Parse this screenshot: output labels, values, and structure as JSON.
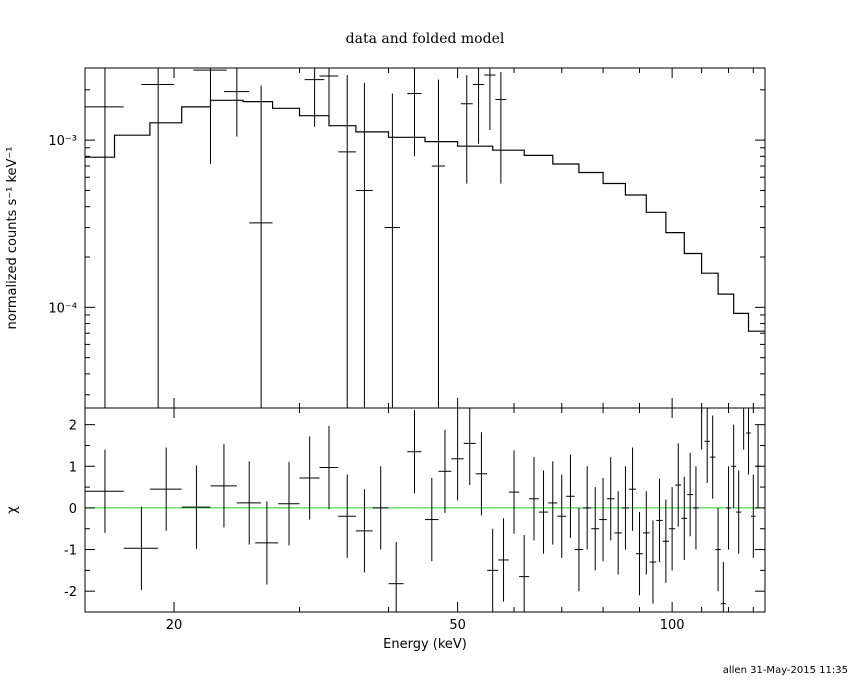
{
  "chart_data": {
    "type": "line",
    "title": "data and folded model",
    "xlabel": "Energy (keV)",
    "footer": "allen 31-May-2015 11:35",
    "x_scale": "log",
    "xlim": [
      15,
      135
    ],
    "x_ticks": [
      {
        "value": 20,
        "label": "20"
      },
      {
        "value": 50,
        "label": "50"
      },
      {
        "value": 100,
        "label": "100"
      }
    ],
    "top_panel": {
      "ylabel": "normalized counts s⁻¹ keV⁻¹",
      "y_scale": "log",
      "ylim": [
        2.5e-05,
        0.0027
      ],
      "y_ticks": [
        {
          "value": 0.001,
          "label": "10⁻³"
        },
        {
          "value": 0.0001,
          "label": "10⁻⁴"
        }
      ],
      "data_points": [
        {
          "x": 16.0,
          "xerr": 1.0,
          "y": 0.00158,
          "yerr_lo": 0.00157,
          "yerr_hi": 0.0015
        },
        {
          "x": 19.0,
          "xerr": 1.0,
          "y": 0.00215,
          "yerr_lo": 0.00214,
          "yerr_hi": 0.0011
        },
        {
          "x": 22.5,
          "xerr": 1.2,
          "y": 0.00262,
          "yerr_lo": 0.0019,
          "yerr_hi": 0.0008
        },
        {
          "x": 24.5,
          "xerr": 1.0,
          "y": 0.00195,
          "yerr_lo": 0.0009,
          "yerr_hi": 0.0008
        },
        {
          "x": 26.5,
          "xerr": 1.0,
          "y": 0.00032,
          "yerr_lo": 0.000295,
          "yerr_hi": 0.0018
        },
        {
          "x": 31.5,
          "xerr": 1.0,
          "y": 0.0023,
          "yerr_lo": 0.0011,
          "yerr_hi": 0.0008
        },
        {
          "x": 33.0,
          "xerr": 1.0,
          "y": 0.00242,
          "yerr_lo": 0.0011,
          "yerr_hi": 0.0009
        },
        {
          "x": 35.0,
          "xerr": 1.0,
          "y": 0.00085,
          "yerr_lo": 0.00083,
          "yerr_hi": 0.0016
        },
        {
          "x": 37.0,
          "xerr": 1.0,
          "y": 0.0005,
          "yerr_lo": 0.00048,
          "yerr_hi": 0.0017
        },
        {
          "x": 40.5,
          "xerr": 1.0,
          "y": 0.0003,
          "yerr_lo": 0.00028,
          "yerr_hi": 0.0016
        },
        {
          "x": 43.5,
          "xerr": 1.0,
          "y": 0.0019,
          "yerr_lo": 0.0011,
          "yerr_hi": 0.0008
        },
        {
          "x": 47.0,
          "xerr": 1.0,
          "y": 0.0007,
          "yerr_lo": 0.00068,
          "yerr_hi": 0.0016
        },
        {
          "x": 51.5,
          "xerr": 1.0,
          "y": 0.00165,
          "yerr_lo": 0.0011,
          "yerr_hi": 0.0008
        },
        {
          "x": 53.5,
          "xerr": 1.0,
          "y": 0.00215,
          "yerr_lo": 0.0012,
          "yerr_hi": 0.0009
        },
        {
          "x": 55.5,
          "xerr": 1.0,
          "y": 0.00245,
          "yerr_lo": 0.0013,
          "yerr_hi": 0.0009
        },
        {
          "x": 57.5,
          "xerr": 1.0,
          "y": 0.00175,
          "yerr_lo": 0.0012,
          "yerr_hi": 0.0008
        }
      ],
      "model_step": [
        [
          15,
          0.00079
        ],
        [
          16.5,
          0.00107
        ],
        [
          18.5,
          0.00127
        ],
        [
          20.5,
          0.00158
        ],
        [
          22.5,
          0.00173
        ],
        [
          25.0,
          0.0017
        ],
        [
          27.5,
          0.00155
        ],
        [
          30.0,
          0.0014
        ],
        [
          33.0,
          0.00122
        ],
        [
          36.0,
          0.00112
        ],
        [
          40.0,
          0.00104
        ],
        [
          45.0,
          0.00098
        ],
        [
          50.0,
          0.00092
        ],
        [
          56.0,
          0.00087
        ],
        [
          62.0,
          0.00081
        ],
        [
          68.0,
          0.00072
        ],
        [
          74.0,
          0.00064
        ],
        [
          80.0,
          0.00055
        ],
        [
          86.0,
          0.00047
        ],
        [
          92.0,
          0.00037
        ],
        [
          98.0,
          0.00028
        ],
        [
          104.0,
          0.00021
        ],
        [
          110.0,
          0.00016
        ],
        [
          116.0,
          0.00012
        ],
        [
          122.0,
          9.2e-05
        ],
        [
          128.0,
          7.2e-05
        ],
        [
          135,
          7.2e-05
        ]
      ]
    },
    "bottom_panel": {
      "ylabel": "χ",
      "ylim": [
        -2.5,
        2.4
      ],
      "y_ticks": [
        {
          "value": 2,
          "label": "2"
        },
        {
          "value": 1,
          "label": "1"
        },
        {
          "value": 0,
          "label": "0"
        },
        {
          "value": -1,
          "label": "-1"
        },
        {
          "value": -2,
          "label": "-2"
        }
      ],
      "zero_line_color": "#22cc22",
      "residuals": [
        {
          "x": 16.0,
          "xerr": 1.0,
          "y": 0.4
        },
        {
          "x": 18.0,
          "xerr": 1.0,
          "y": -0.97
        },
        {
          "x": 19.5,
          "xerr": 1.0,
          "y": 0.45
        },
        {
          "x": 21.5,
          "xerr": 1.0,
          "y": 0.02
        },
        {
          "x": 23.5,
          "xerr": 1.0,
          "y": 0.53
        },
        {
          "x": 25.5,
          "xerr": 1.0,
          "y": 0.12
        },
        {
          "x": 27.0,
          "xerr": 1.0,
          "y": -0.84
        },
        {
          "x": 29.0,
          "xerr": 1.0,
          "y": 0.1
        },
        {
          "x": 31.0,
          "xerr": 1.0,
          "y": 0.72
        },
        {
          "x": 33.0,
          "xerr": 1.0,
          "y": 0.97
        },
        {
          "x": 35.0,
          "xerr": 1.0,
          "y": -0.2
        },
        {
          "x": 37.0,
          "xerr": 1.0,
          "y": -0.55
        },
        {
          "x": 39.0,
          "xerr": 1.0,
          "y": 0.0
        },
        {
          "x": 41.0,
          "xerr": 1.0,
          "y": -1.82
        },
        {
          "x": 43.5,
          "xerr": 1.0,
          "y": 1.35
        },
        {
          "x": 46.0,
          "xerr": 1.0,
          "y": -0.28
        },
        {
          "x": 48.0,
          "xerr": 1.0,
          "y": 0.88
        },
        {
          "x": 50.0,
          "xerr": 1.0,
          "y": 1.18
        },
        {
          "x": 52.0,
          "xerr": 1.0,
          "y": 1.55
        },
        {
          "x": 54.0,
          "xerr": 1.0,
          "y": 0.82
        },
        {
          "x": 56.0,
          "xerr": 1.0,
          "y": -1.5
        },
        {
          "x": 58.0,
          "xerr": 1.0,
          "y": -1.25
        },
        {
          "x": 60.0,
          "xerr": 1.0,
          "y": 0.38
        },
        {
          "x": 62.0,
          "xerr": 1.0,
          "y": -1.65
        },
        {
          "x": 64.0,
          "xerr": 1.0,
          "y": 0.22
        },
        {
          "x": 66.0,
          "xerr": 1.0,
          "y": -0.1
        },
        {
          "x": 68.0,
          "xerr": 1.0,
          "y": 0.12
        },
        {
          "x": 70.0,
          "xerr": 1.0,
          "y": -0.2
        },
        {
          "x": 72.0,
          "xerr": 1.0,
          "y": 0.28
        },
        {
          "x": 74.0,
          "xerr": 1.0,
          "y": -1.0
        },
        {
          "x": 76.0,
          "xerr": 1.0,
          "y": 0.0
        },
        {
          "x": 78.0,
          "xerr": 1.0,
          "y": -0.5
        },
        {
          "x": 80.0,
          "xerr": 1.0,
          "y": -0.28
        },
        {
          "x": 82.0,
          "xerr": 1.0,
          "y": 0.22
        },
        {
          "x": 84.0,
          "xerr": 1.0,
          "y": -0.6
        },
        {
          "x": 86.0,
          "xerr": 1.0,
          "y": 0.0
        },
        {
          "x": 88.0,
          "xerr": 1.0,
          "y": 0.45
        },
        {
          "x": 90.0,
          "xerr": 1.0,
          "y": -1.1
        },
        {
          "x": 92.0,
          "xerr": 1.0,
          "y": -0.6
        },
        {
          "x": 94.0,
          "xerr": 1.0,
          "y": -1.3
        },
        {
          "x": 96.0,
          "xerr": 1.0,
          "y": -0.3
        },
        {
          "x": 98.0,
          "xerr": 1.0,
          "y": -0.8
        },
        {
          "x": 100.0,
          "xerr": 1.0,
          "y": -0.5
        },
        {
          "x": 102.0,
          "xerr": 1.0,
          "y": 0.55
        },
        {
          "x": 104.0,
          "xerr": 1.0,
          "y": -0.25
        },
        {
          "x": 106.0,
          "xerr": 1.0,
          "y": 0.32
        },
        {
          "x": 108.0,
          "xerr": 1.0,
          "y": 0.0
        },
        {
          "x": 110.0,
          "xerr": 1.0,
          "y": 2.4
        },
        {
          "x": 112.0,
          "xerr": 1.0,
          "y": 1.6
        },
        {
          "x": 114.0,
          "xerr": 1.0,
          "y": 1.22
        },
        {
          "x": 116.0,
          "xerr": 1.0,
          "y": -1.0
        },
        {
          "x": 118.0,
          "xerr": 1.0,
          "y": -2.3
        },
        {
          "x": 120.0,
          "xerr": 1.0,
          "y": 0.0
        },
        {
          "x": 122.0,
          "xerr": 1.0,
          "y": 1.0
        },
        {
          "x": 124.0,
          "xerr": 1.0,
          "y": -0.1
        },
        {
          "x": 126.0,
          "xerr": 1.0,
          "y": 2.4
        },
        {
          "x": 128.0,
          "xerr": 1.0,
          "y": 1.8
        },
        {
          "x": 130.0,
          "xerr": 1.0,
          "y": -0.2
        },
        {
          "x": 132.0,
          "xerr": 1.0,
          "y": 1.0
        }
      ]
    }
  }
}
